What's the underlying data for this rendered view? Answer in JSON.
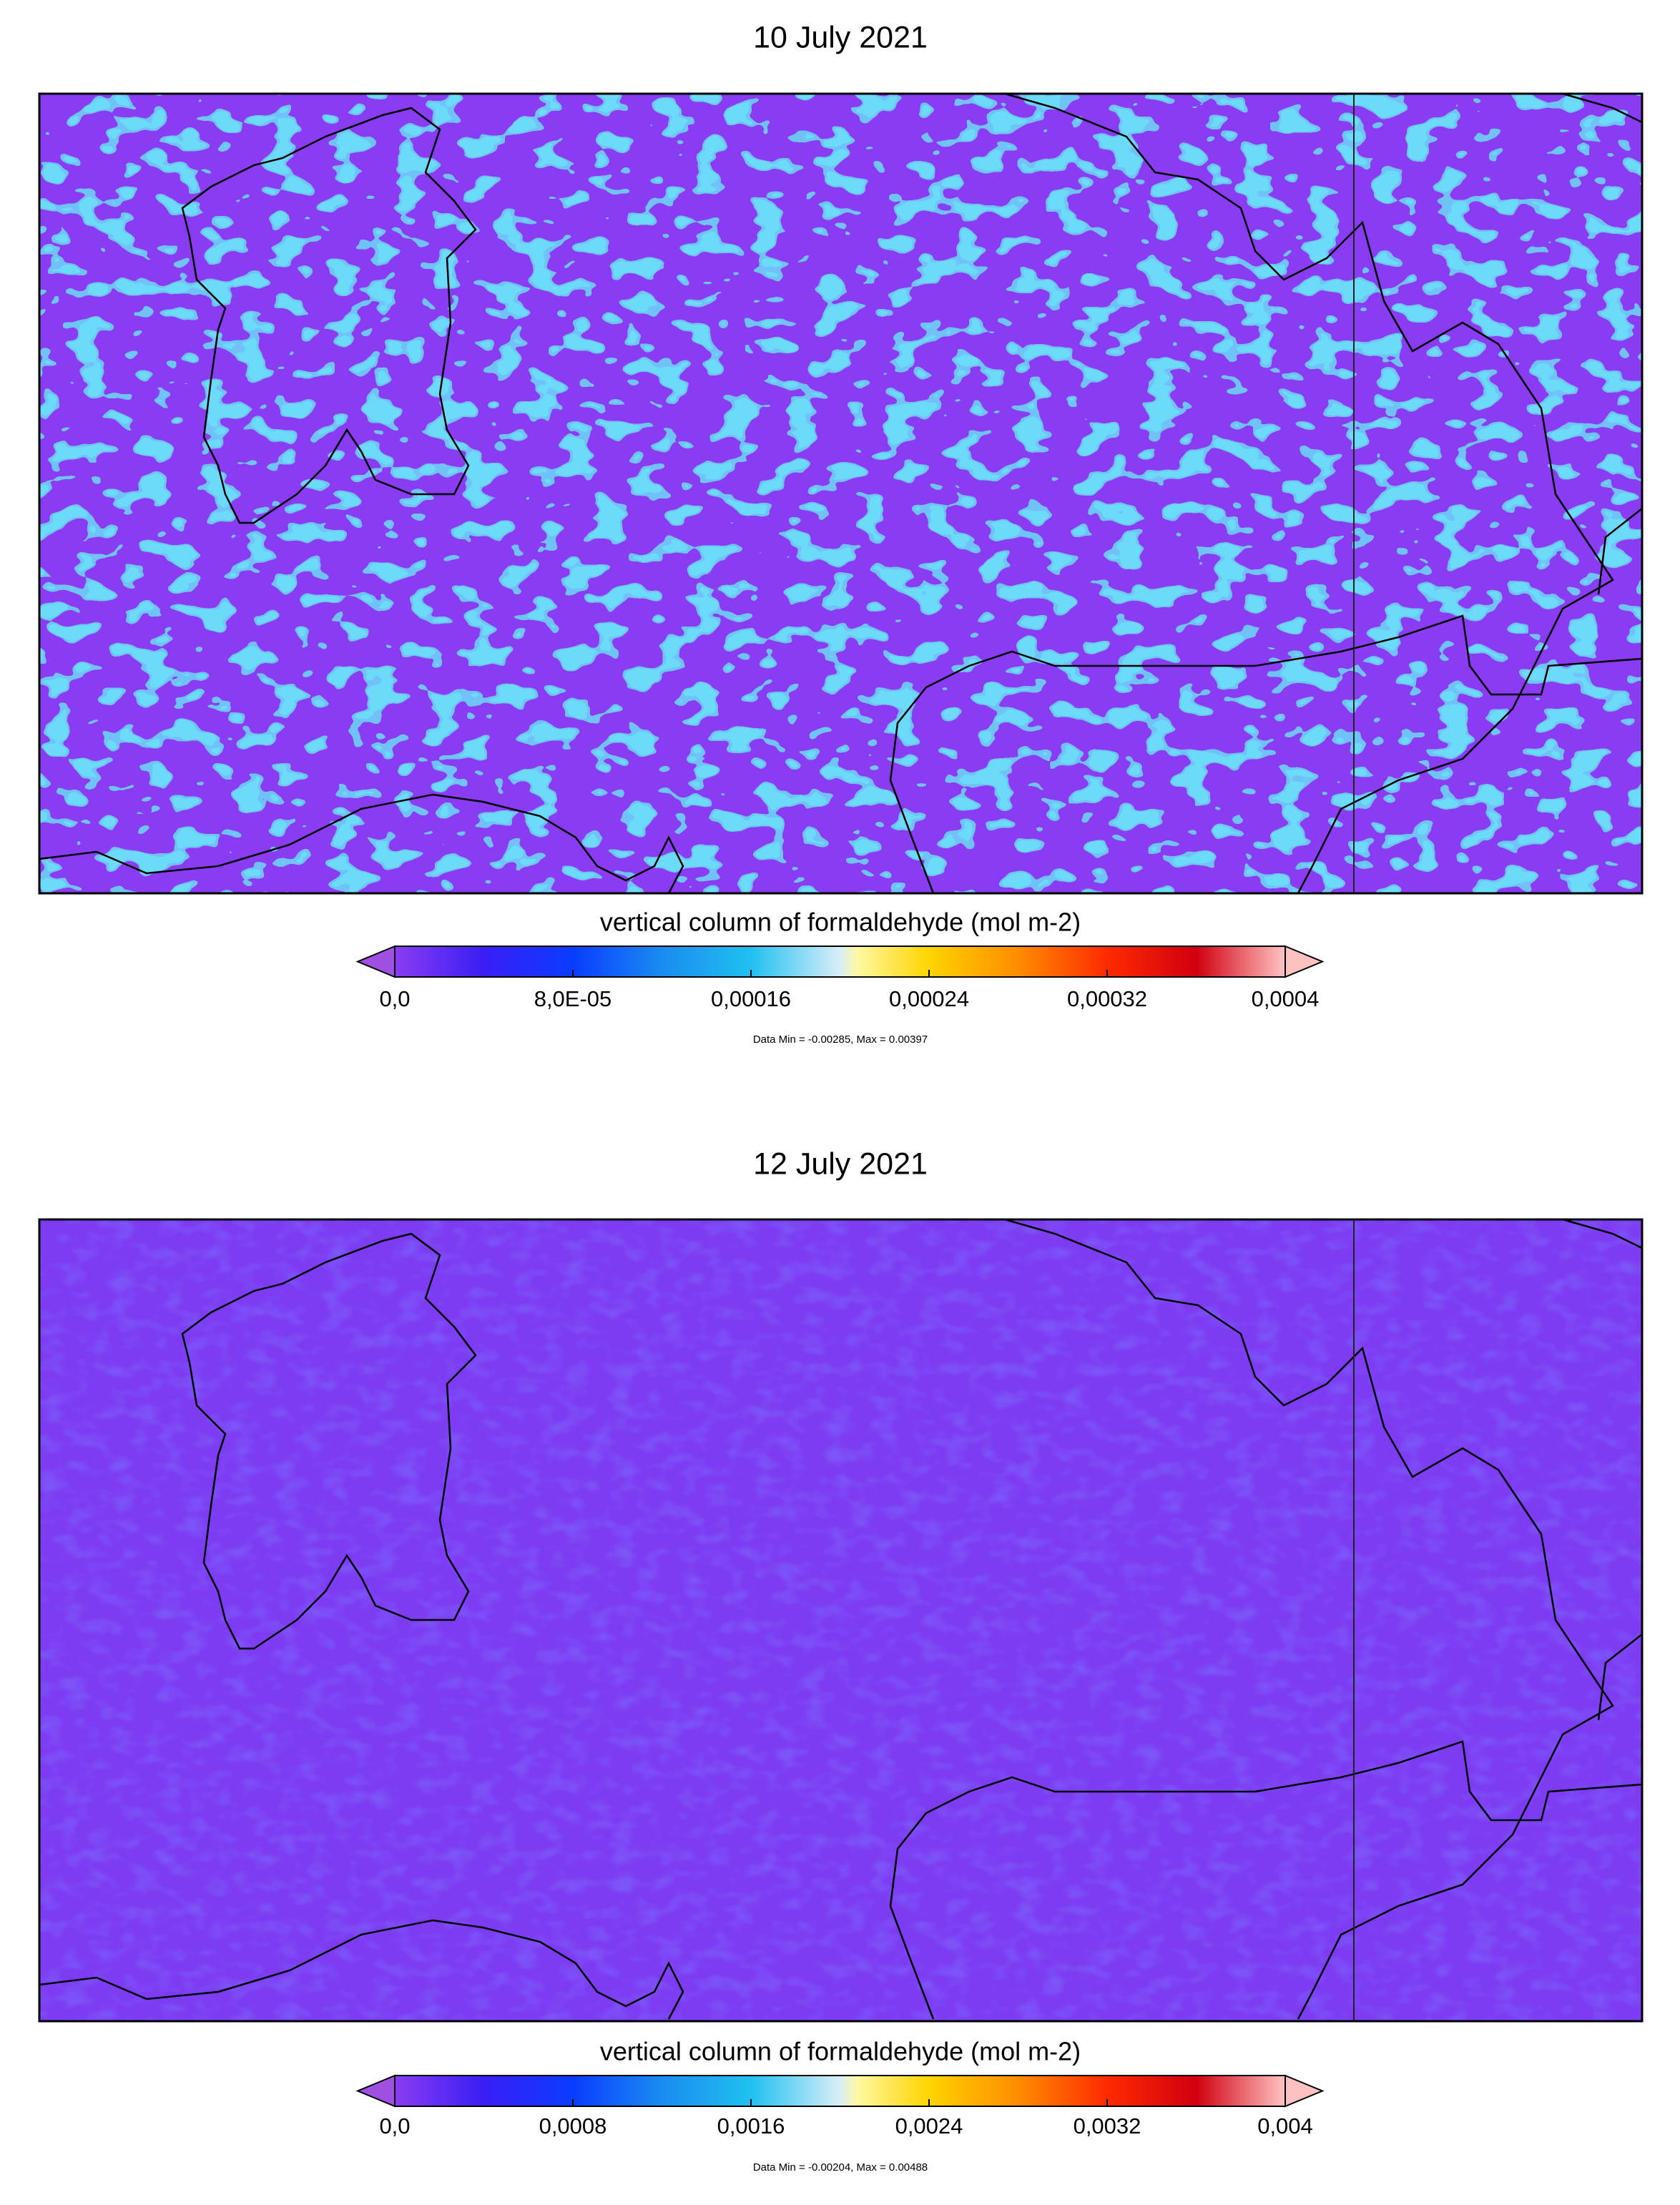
{
  "panels": [
    {
      "title": "10 July 2021",
      "colorbar": {
        "label": "vertical column of formaldehyde (mol m-2)",
        "ticks": [
          "0,0",
          "8,0E-05",
          "0,00016",
          "0,00024",
          "0,00032",
          "0,0004"
        ],
        "note": "Data Min = -0.00285, Max = 0.00397"
      }
    },
    {
      "title": "12 July 2021",
      "colorbar": {
        "label": "vertical column of formaldehyde (mol m-2)",
        "ticks": [
          "0,0",
          "0,0008",
          "0,0016",
          "0,0024",
          "0,0032",
          "0,004"
        ],
        "note": "Data Min = -0.00204, Max = 0.00488"
      }
    }
  ]
}
